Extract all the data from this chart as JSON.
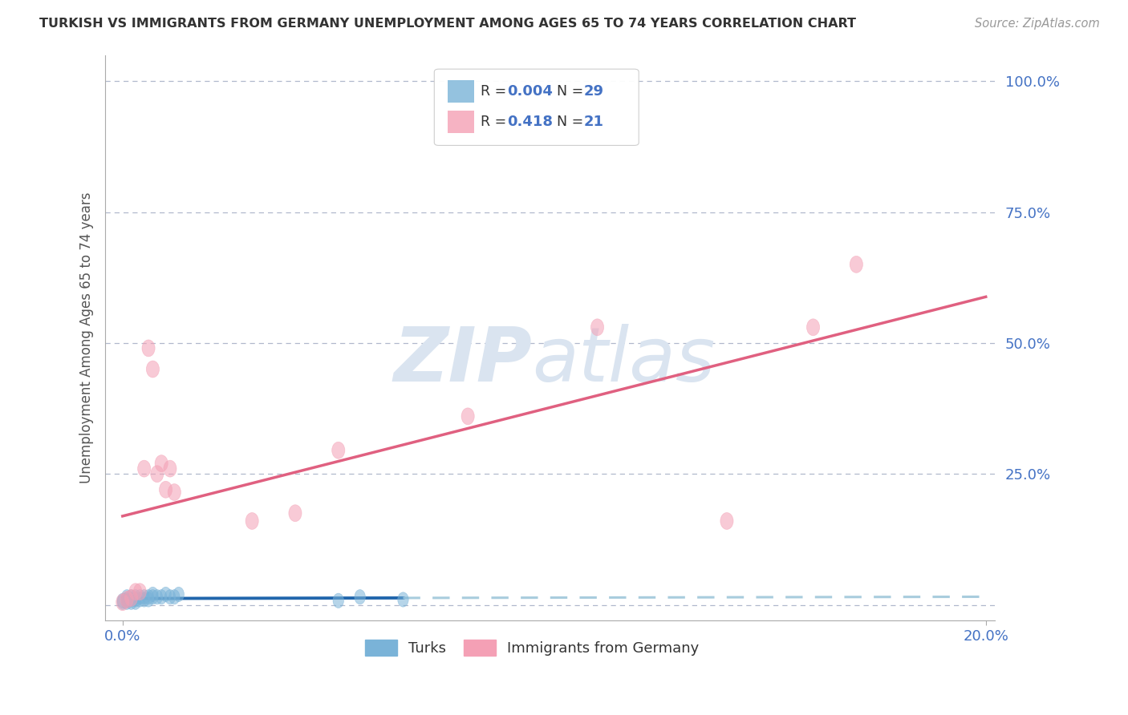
{
  "title": "TURKISH VS IMMIGRANTS FROM GERMANY UNEMPLOYMENT AMONG AGES 65 TO 74 YEARS CORRELATION CHART",
  "source": "Source: ZipAtlas.com",
  "ylabel": "Unemployment Among Ages 65 to 74 years",
  "turks_color": "#7ab3d8",
  "germany_color": "#f4a0b5",
  "turks_line_color": "#2166ac",
  "turks_dash_color": "#a8ccdd",
  "germany_line_color": "#e06080",
  "legend_box_color": "#eeeeee",
  "grid_color": "#b0b8cc",
  "axis_tick_color": "#4472c4",
  "title_color": "#333333",
  "source_color": "#999999",
  "ylabel_color": "#555555",
  "watermark_color": "#dae4f0",
  "background": "#ffffff",
  "turks_x": [
    0.0,
    0.0,
    0.001,
    0.001,
    0.001,
    0.001,
    0.002,
    0.002,
    0.002,
    0.003,
    0.003,
    0.003,
    0.004,
    0.004,
    0.005,
    0.005,
    0.006,
    0.006,
    0.007,
    0.007,
    0.008,
    0.009,
    0.01,
    0.011,
    0.012,
    0.013,
    0.05,
    0.055,
    0.065
  ],
  "turks_y": [
    0.005,
    0.008,
    0.005,
    0.008,
    0.01,
    0.015,
    0.005,
    0.01,
    0.015,
    0.005,
    0.01,
    0.015,
    0.01,
    0.015,
    0.01,
    0.015,
    0.01,
    0.015,
    0.015,
    0.02,
    0.015,
    0.015,
    0.02,
    0.015,
    0.015,
    0.02,
    0.008,
    0.015,
    0.01
  ],
  "germany_x": [
    0.0,
    0.001,
    0.002,
    0.003,
    0.004,
    0.005,
    0.006,
    0.007,
    0.008,
    0.009,
    0.01,
    0.011,
    0.012,
    0.03,
    0.04,
    0.05,
    0.08,
    0.11,
    0.14,
    0.16,
    0.17
  ],
  "germany_y": [
    0.005,
    0.01,
    0.013,
    0.025,
    0.025,
    0.26,
    0.49,
    0.45,
    0.25,
    0.27,
    0.22,
    0.26,
    0.215,
    0.16,
    0.175,
    0.295,
    0.36,
    0.53,
    0.16,
    0.53,
    0.65
  ],
  "xlim_min": 0.0,
  "xlim_max": 0.2,
  "ylim_min": -0.03,
  "ylim_max": 1.05,
  "ytick_vals": [
    0.0,
    0.25,
    0.5,
    0.75,
    1.0
  ],
  "ytick_labels": [
    "",
    "25.0%",
    "50.0%",
    "75.0%",
    "100.0%"
  ],
  "xtick_vals": [
    0.0,
    0.2
  ],
  "xtick_labels": [
    "0.0%",
    "20.0%"
  ]
}
